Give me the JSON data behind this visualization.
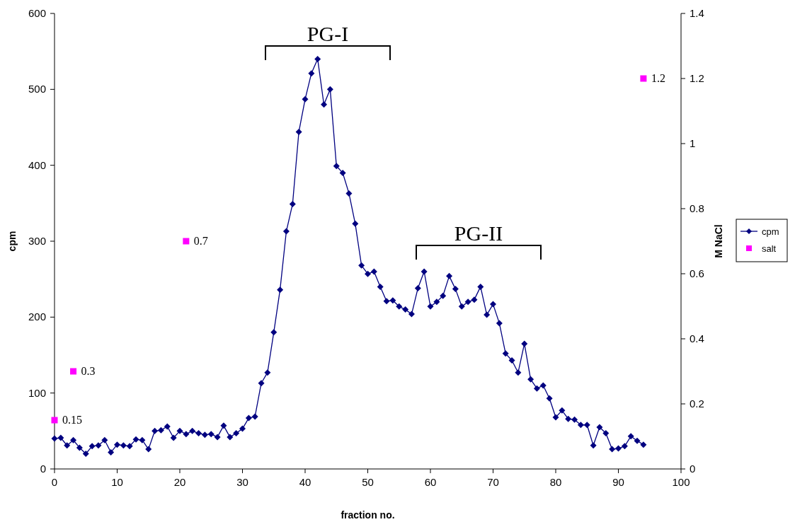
{
  "chart_data": {
    "type": "line",
    "xlabel": "fraction no.",
    "ylabel": "cpm",
    "y2label": "M NaCl",
    "xlim": [
      0,
      100
    ],
    "xticks": [
      0,
      10,
      20,
      30,
      40,
      50,
      60,
      70,
      80,
      90,
      100
    ],
    "ylim": [
      0,
      600
    ],
    "yticks": [
      0,
      100,
      200,
      300,
      400,
      500,
      600
    ],
    "y2lim": [
      0,
      1.4
    ],
    "y2ticks": [
      0,
      0.2,
      0.4,
      0.6,
      0.8,
      1,
      1.2,
      1.4
    ],
    "grid": false,
    "legend": "right",
    "annotations": [
      "PG-I",
      "PG-II"
    ],
    "series": [
      {
        "name": "cpm",
        "color": "#000080",
        "marker": "diamond",
        "x": [
          0,
          1,
          2,
          3,
          4,
          5,
          6,
          7,
          8,
          9,
          10,
          11,
          12,
          13,
          14,
          15,
          16,
          17,
          18,
          19,
          20,
          21,
          22,
          23,
          24,
          25,
          26,
          27,
          28,
          29,
          30,
          31,
          32,
          33,
          34,
          35,
          36,
          37,
          38,
          39,
          40,
          41,
          42,
          43,
          44,
          45,
          46,
          47,
          48,
          49,
          50,
          51,
          52,
          53,
          54,
          55,
          56,
          57,
          58,
          59,
          60,
          61,
          62,
          63,
          64,
          65,
          66,
          67,
          68,
          69,
          70,
          71,
          72,
          73,
          74,
          75,
          76,
          77,
          78,
          79,
          80,
          81,
          82,
          83,
          84,
          85,
          86,
          87,
          88,
          89,
          90,
          91,
          92,
          93,
          94
        ],
        "values": [
          40,
          41,
          31,
          38,
          28,
          20,
          30,
          31,
          38,
          22,
          32,
          31,
          30,
          39,
          38,
          26,
          50,
          51,
          56,
          41,
          50,
          46,
          50,
          47,
          45,
          46,
          42,
          57,
          42,
          47,
          53,
          67,
          69,
          113,
          127,
          180,
          236,
          313,
          349,
          444,
          487,
          521,
          540,
          480,
          500,
          399,
          390,
          363,
          323,
          268,
          257,
          260,
          240,
          221,
          222,
          214,
          210,
          204,
          238,
          260,
          214,
          220,
          228,
          254,
          237,
          214,
          220,
          223,
          240,
          203,
          217,
          192,
          152,
          143,
          127,
          165,
          118,
          106,
          110,
          93,
          68,
          77,
          66,
          65,
          58,
          58,
          31,
          55,
          47,
          26,
          27,
          30,
          43,
          37,
          32
        ]
      },
      {
        "name": "salt",
        "type": "scatter",
        "axis": "y2",
        "color": "#ff00ff",
        "marker": "square",
        "data_labels": true,
        "x": [
          0,
          3,
          21,
          94
        ],
        "values": [
          0.15,
          0.3,
          0.7,
          1.2
        ]
      }
    ]
  }
}
